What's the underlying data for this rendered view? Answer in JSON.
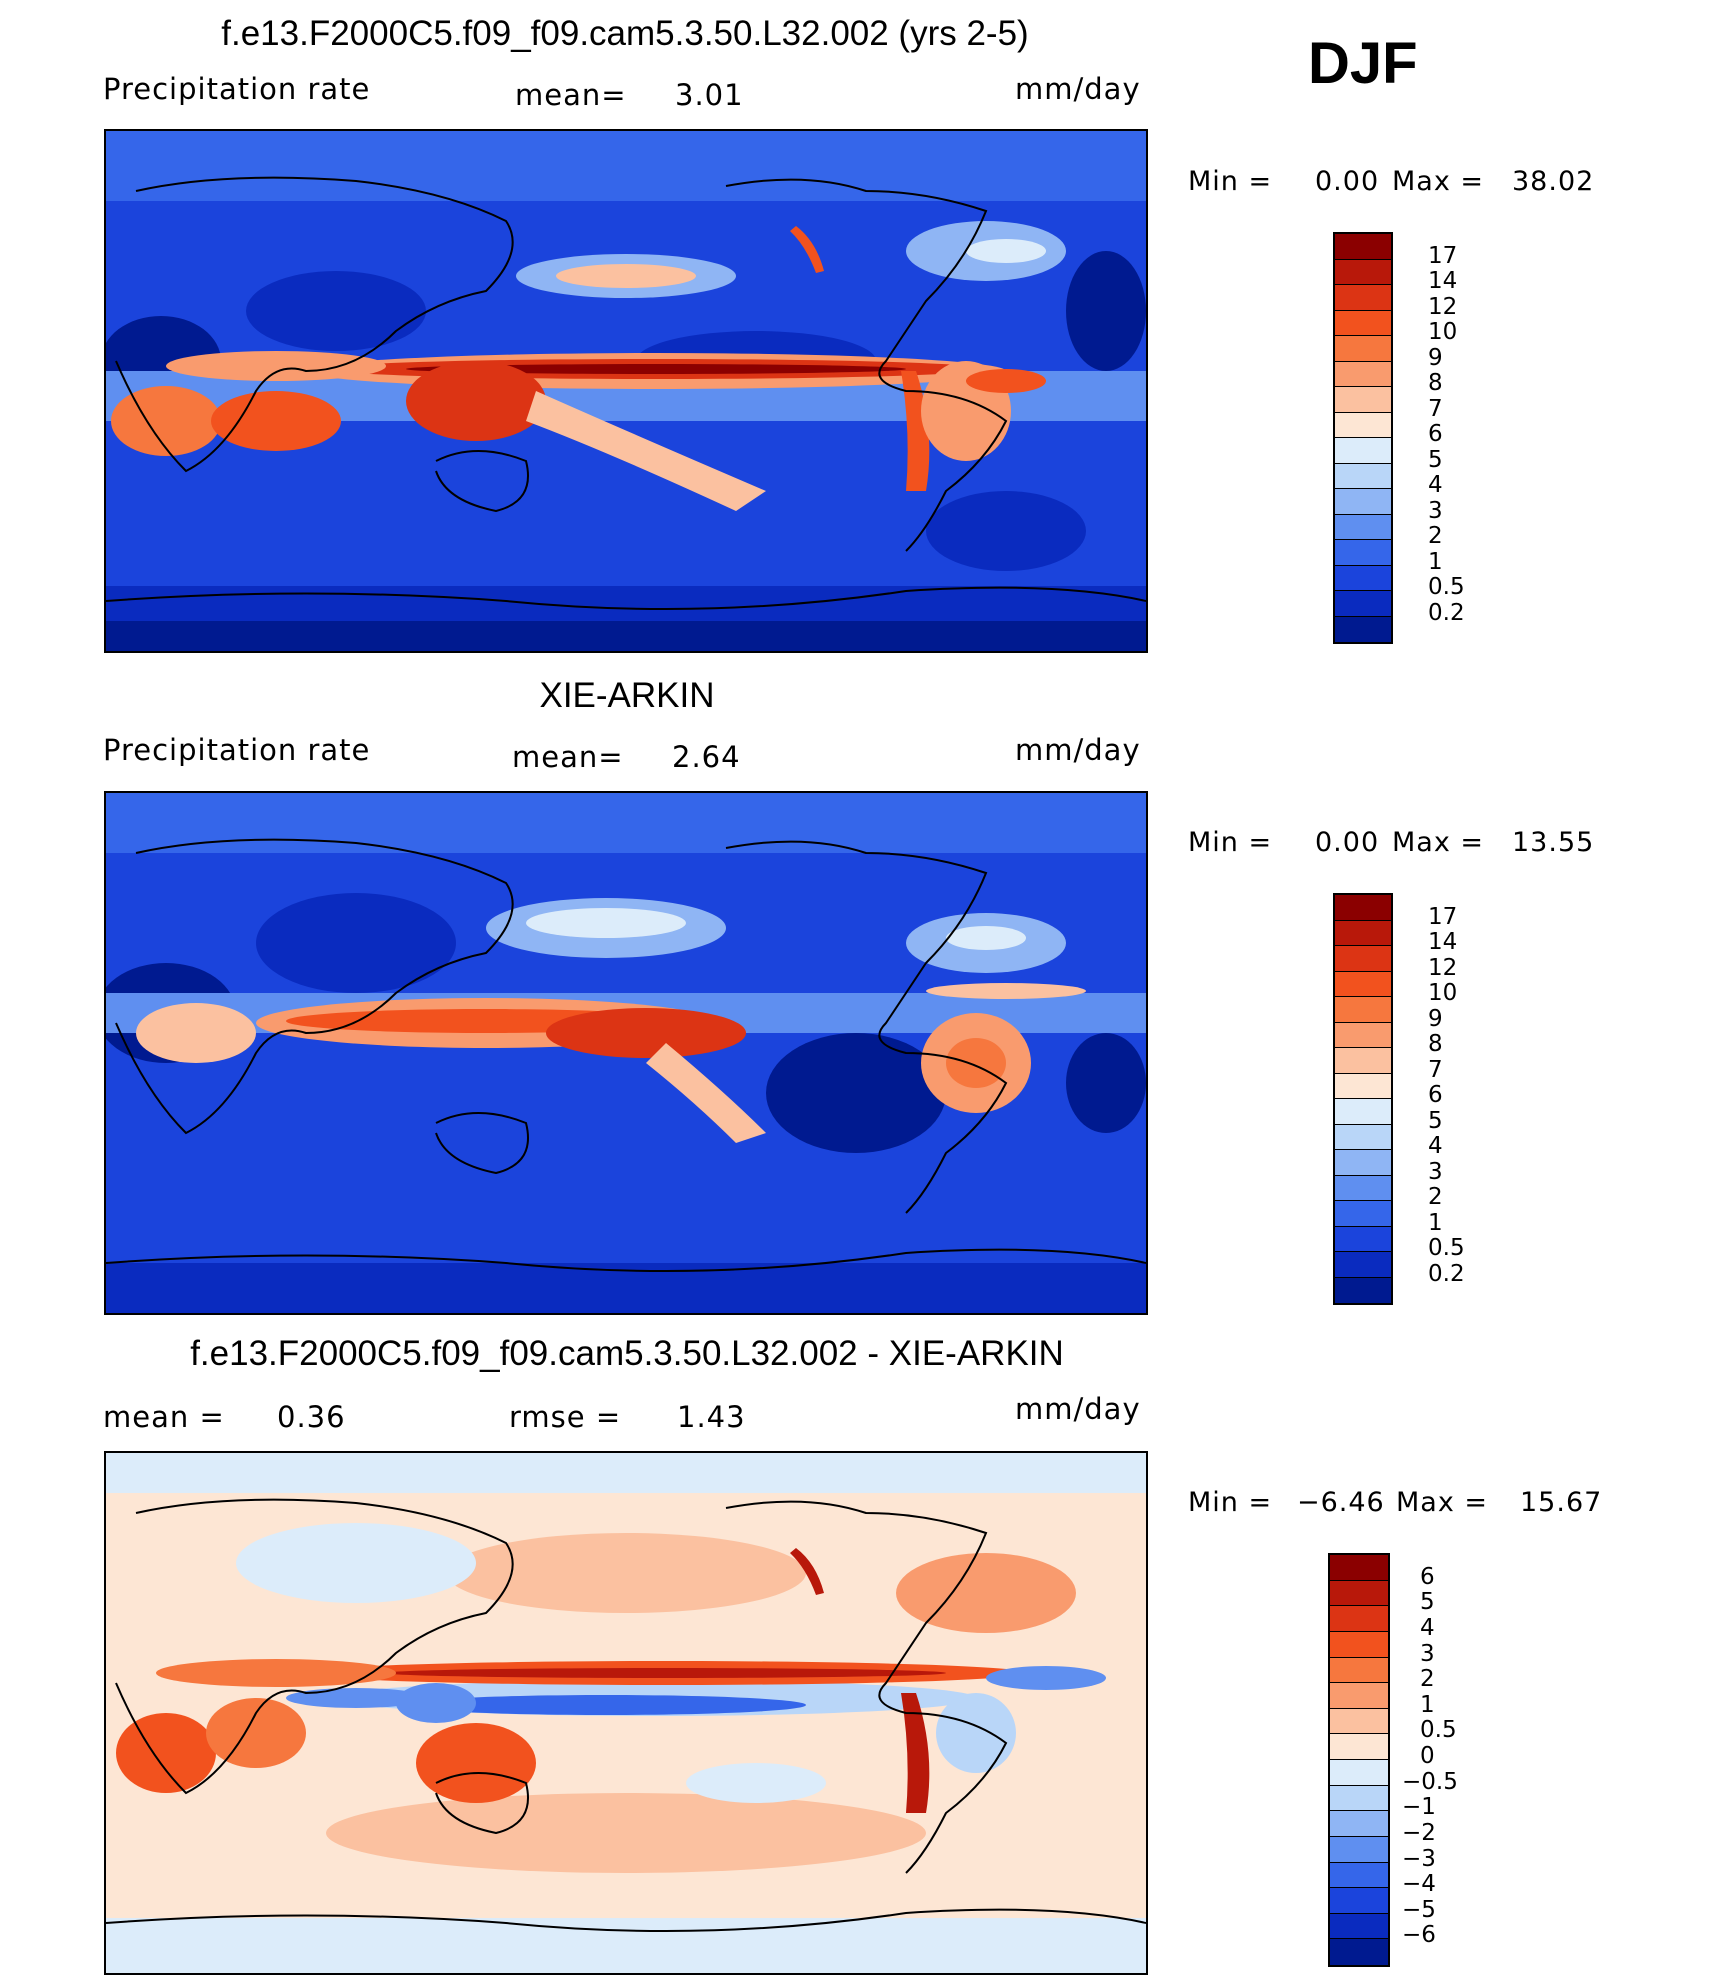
{
  "season": "DJF",
  "panels": [
    {
      "title": "f.e13.F2000C5.f09_f09.cam5.3.50.L32.002 (yrs 2-5)",
      "left_label": "Precipitation  rate",
      "mean_label": "mean=",
      "mean_value": "3.01",
      "units": "mm/day",
      "min_label": "Min  =",
      "min_value": "0.00",
      "max_label": "Max  =",
      "max_value": "38.02",
      "levels": [
        "17",
        "14",
        "12",
        "10",
        "9",
        "8",
        "7",
        "6",
        "5",
        "4",
        "3",
        "2",
        "1",
        "0.5",
        "0.2"
      ],
      "colors": [
        "#8b0000",
        "#b8180a",
        "#dc3414",
        "#f2521e",
        "#f6773e",
        "#f99b6e",
        "#fbc1a0",
        "#fde6d4",
        "#dcecfa",
        "#b9d6f8",
        "#8fb5f4",
        "#5f8ff0",
        "#3566ea",
        "#1b44dc",
        "#0a2bbf",
        "#001a90"
      ],
      "map_type": "absolute"
    },
    {
      "title": "XIE-ARKIN",
      "left_label": "Precipitation  rate",
      "mean_label": "mean=",
      "mean_value": "2.64",
      "units": "mm/day",
      "min_label": "Min  =",
      "min_value": "0.00",
      "max_label": "Max  =",
      "max_value": "13.55",
      "levels": [
        "17",
        "14",
        "12",
        "10",
        "9",
        "8",
        "7",
        "6",
        "5",
        "4",
        "3",
        "2",
        "1",
        "0.5",
        "0.2"
      ],
      "colors": [
        "#8b0000",
        "#b8180a",
        "#dc3414",
        "#f2521e",
        "#f6773e",
        "#f99b6e",
        "#fbc1a0",
        "#fde6d4",
        "#dcecfa",
        "#b9d6f8",
        "#8fb5f4",
        "#5f8ff0",
        "#3566ea",
        "#1b44dc",
        "#0a2bbf",
        "#001a90"
      ],
      "map_type": "absolute"
    },
    {
      "title": "f.e13.F2000C5.f09_f09.cam5.3.50.L32.002 - XIE-ARKIN",
      "mean_label": "mean  =",
      "mean_value": "0.36",
      "rmse_label": "rmse  =",
      "rmse_value": "1.43",
      "units": "mm/day",
      "min_label": "Min  =",
      "min_value": "−6.46",
      "max_label": "Max  =",
      "max_value": "15.67",
      "levels": [
        "6",
        "5",
        "4",
        "3",
        "2",
        "1",
        "0.5",
        "0",
        "−0.5",
        "−1",
        "−2",
        "−3",
        "−4",
        "−5",
        "−6"
      ],
      "colors": [
        "#8b0000",
        "#b8180a",
        "#dc3414",
        "#f2521e",
        "#f6773e",
        "#f99b6e",
        "#fbc1a0",
        "#fde6d4",
        "#dcecfa",
        "#b9d6f8",
        "#8fb5f4",
        "#5f8ff0",
        "#3566ea",
        "#1b44dc",
        "#0a2bbf",
        "#001a90"
      ],
      "map_type": "difference"
    }
  ]
}
